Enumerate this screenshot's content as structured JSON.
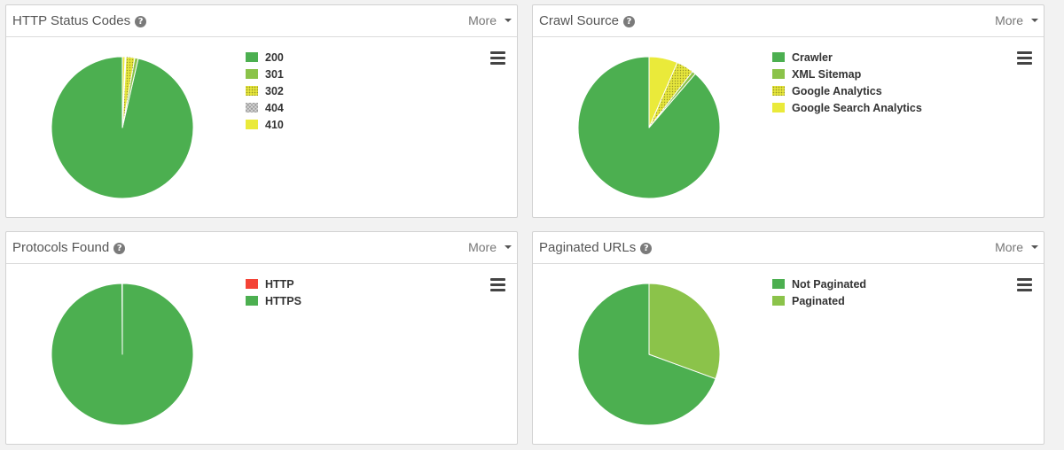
{
  "more_label": "More",
  "help_glyph": "?",
  "panels": [
    {
      "title": "HTTP Status Codes",
      "chart_data": {
        "type": "pie",
        "series": [
          {
            "name": "200",
            "value": 96.4,
            "color": "#4caf50",
            "pattern": "none"
          },
          {
            "name": "301",
            "value": 0.8,
            "color": "#8bc34a",
            "pattern": "none"
          },
          {
            "name": "302",
            "value": 2.0,
            "color": "#e6e63c",
            "pattern": "dots"
          },
          {
            "name": "404",
            "value": 0.2,
            "color": "#9e9e9e",
            "pattern": "cross"
          },
          {
            "name": "410",
            "value": 0.6,
            "color": "#eaea3a",
            "pattern": "none"
          }
        ]
      }
    },
    {
      "title": "Crawl Source",
      "chart_data": {
        "type": "pie",
        "series": [
          {
            "name": "Crawler",
            "value": 88.7,
            "color": "#4caf50",
            "pattern": "none"
          },
          {
            "name": "XML Sitemap",
            "value": 0.8,
            "color": "#8bc34a",
            "pattern": "none"
          },
          {
            "name": "Google Analytics",
            "value": 4.0,
            "color": "#e6e63c",
            "pattern": "dots"
          },
          {
            "name": "Google Search Analytics",
            "value": 6.5,
            "color": "#eaea3a",
            "pattern": "none"
          }
        ]
      }
    },
    {
      "title": "Protocols Found",
      "chart_data": {
        "type": "pie",
        "series": [
          {
            "name": "HTTP",
            "value": 0.1,
            "color": "#f44336",
            "pattern": "none"
          },
          {
            "name": "HTTPS",
            "value": 99.9,
            "color": "#4caf50",
            "pattern": "none"
          }
        ]
      }
    },
    {
      "title": "Paginated URLs",
      "chart_data": {
        "type": "pie",
        "series": [
          {
            "name": "Not Paginated",
            "value": 69.4,
            "color": "#4caf50",
            "pattern": "none"
          },
          {
            "name": "Paginated",
            "value": 30.6,
            "color": "#8bc34a",
            "pattern": "none"
          }
        ]
      }
    }
  ]
}
